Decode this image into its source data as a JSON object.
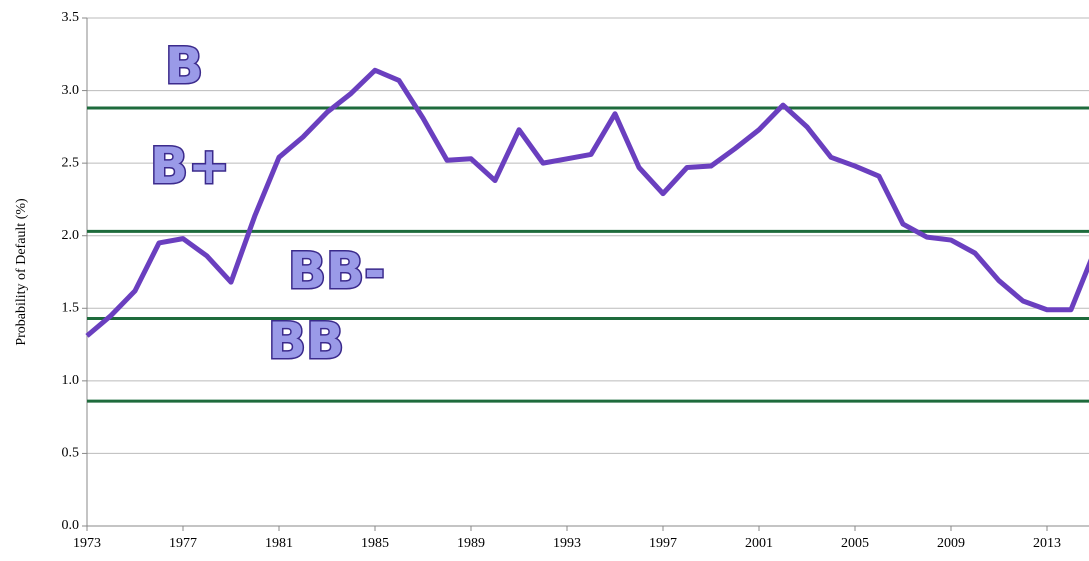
{
  "chart_data": {
    "type": "line",
    "y_label": "Probability of Default (%)",
    "x": [
      1973,
      1974,
      1975,
      1976,
      1977,
      1978,
      1979,
      1980,
      1981,
      1982,
      1983,
      1984,
      1985,
      1986,
      1987,
      1988,
      1989,
      1990,
      1991,
      1992,
      1993,
      1994,
      1995,
      1996,
      1997,
      1998,
      1999,
      2000,
      2001,
      2002,
      2003,
      2004,
      2005,
      2006,
      2007,
      2008,
      2009,
      2010,
      2011,
      2012,
      2013,
      2014,
      2015
    ],
    "series": [
      {
        "color": "#6a3fbf",
        "values": [
          1.31,
          1.45,
          1.62,
          1.95,
          1.98,
          1.86,
          1.68,
          2.14,
          2.54,
          2.68,
          2.85,
          2.98,
          3.14,
          3.07,
          2.81,
          2.52,
          2.53,
          2.38,
          2.73,
          2.5,
          2.53,
          2.56,
          2.84,
          2.47,
          2.29,
          2.47,
          2.48,
          2.6,
          2.73,
          2.9,
          2.75,
          2.54,
          2.48,
          2.41,
          2.08,
          1.99,
          1.97,
          1.88,
          1.69,
          1.55,
          1.49,
          1.49,
          1.9
        ]
      }
    ],
    "reference_lines": {
      "color": "#1e6b3c",
      "values": [
        2.88,
        2.03,
        1.43,
        0.86
      ]
    },
    "annotations": [
      "B",
      "B+",
      "BB-",
      "BB"
    ],
    "xlim": [
      1973,
      2015
    ],
    "xticks": [
      1973,
      1977,
      1981,
      1985,
      1989,
      1993,
      1997,
      2001,
      2005,
      2009,
      2013
    ],
    "ylim": [
      0,
      3.5
    ],
    "yticks": [
      {
        "value": 0,
        "label": "0.0"
      },
      {
        "value": 0.5,
        "label": "0.5"
      },
      {
        "value": 1,
        "label": "1.0"
      },
      {
        "value": 1.5,
        "label": "1.5"
      },
      {
        "value": 2,
        "label": "2.0"
      },
      {
        "value": 2.5,
        "label": "2.5"
      },
      {
        "value": 3,
        "label": "3.0"
      },
      {
        "value": 3.5,
        "label": "3.5"
      }
    ],
    "grid": true
  }
}
